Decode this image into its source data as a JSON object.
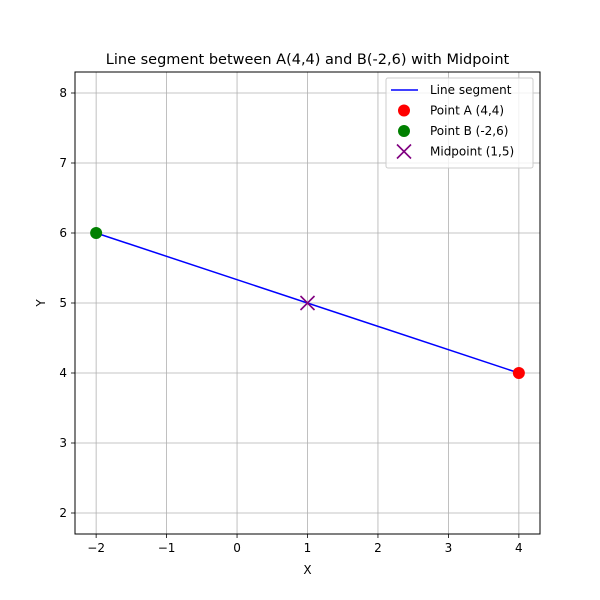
{
  "chart_data": {
    "type": "scatter",
    "title": "Line segment between A(4,4) and B(-2,6) with Midpoint",
    "xlabel": "X",
    "ylabel": "Y",
    "xlim": [
      -2.3,
      4.3
    ],
    "ylim": [
      1.7,
      8.3
    ],
    "xticks": [
      -2,
      -1,
      0,
      1,
      2,
      3,
      4
    ],
    "yticks": [
      2,
      3,
      4,
      5,
      6,
      7,
      8
    ],
    "xtick_labels": [
      "−2",
      "−1",
      "0",
      "1",
      "2",
      "3",
      "4"
    ],
    "ytick_labels": [
      "2",
      "3",
      "4",
      "5",
      "6",
      "7",
      "8"
    ],
    "grid": true,
    "legend_position": "top-right",
    "series": [
      {
        "name": "Line segment",
        "kind": "line",
        "color": "#0000ff",
        "x": [
          4,
          -2
        ],
        "y": [
          4,
          6
        ]
      },
      {
        "name": "Point A (4,4)",
        "kind": "point",
        "marker": "circle",
        "color": "#ff0000",
        "x": [
          4
        ],
        "y": [
          4
        ]
      },
      {
        "name": "Point B (-2,6)",
        "kind": "point",
        "marker": "circle",
        "color": "#008000",
        "x": [
          -2
        ],
        "y": [
          6
        ]
      },
      {
        "name": "Midpoint (1,5)",
        "kind": "point",
        "marker": "x",
        "color": "#800080",
        "x": [
          1
        ],
        "y": [
          5
        ]
      }
    ]
  }
}
